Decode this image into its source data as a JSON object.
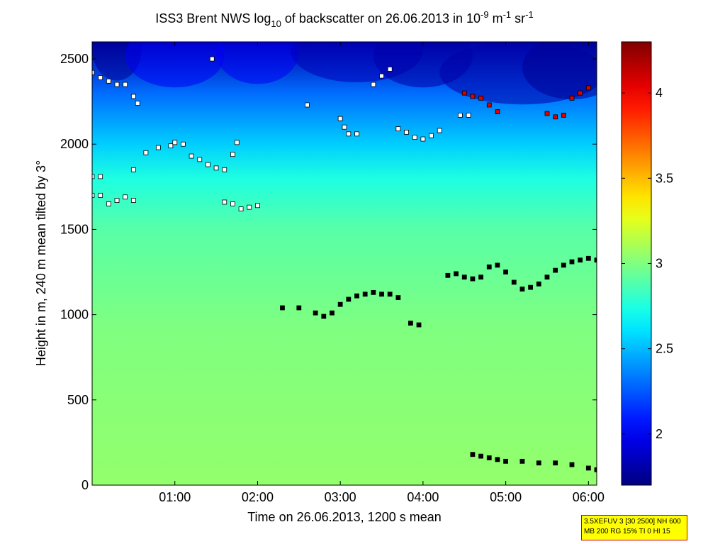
{
  "chart_data": {
    "type": "heatmap",
    "title_parts": [
      "ISS3 Brent NWS log",
      "10",
      " of backscatter on 26.06.2013 in 10",
      "-9",
      " m",
      "-1",
      " sr",
      "-1"
    ],
    "xlabel": "Time on 26.06.2013, 1200 s mean",
    "ylabel": "Height in m, 240 m mean tilted by 3°",
    "x_ticks": [
      "01:00",
      "02:00",
      "03:00",
      "04:00",
      "05:00",
      "06:00"
    ],
    "x_tick_hours": [
      1,
      2,
      3,
      4,
      5,
      6
    ],
    "xlim_hours": [
      0.0,
      6.1
    ],
    "y_ticks": [
      "0",
      "500",
      "1000",
      "1500",
      "2000",
      "2500"
    ],
    "y_tick_values": [
      0,
      500,
      1000,
      1500,
      2000,
      2500
    ],
    "ylim": [
      0,
      2600
    ],
    "colorbar": {
      "ticks": [
        "2",
        "2.5",
        "3",
        "3.5",
        "4"
      ],
      "tick_values": [
        2,
        2.5,
        3,
        3.5,
        4
      ],
      "clim": [
        1.7,
        4.3
      ],
      "colormap": "jet"
    },
    "field_description_levels": [
      {
        "height": 0,
        "value": 3.05
      },
      {
        "height": 900,
        "value": 3.0
      },
      {
        "height": 1500,
        "value": 2.9
      },
      {
        "height": 1800,
        "value": 2.75
      },
      {
        "height": 2000,
        "value": 2.55
      },
      {
        "height": 2300,
        "value": 2.3
      },
      {
        "height": 2600,
        "value": 1.8
      }
    ],
    "markers": [
      {
        "name": "layer_a",
        "color": "#ffffff",
        "points": [
          [
            0.0,
            2420
          ],
          [
            0.1,
            2390
          ],
          [
            0.2,
            2370
          ],
          [
            0.3,
            2350
          ],
          [
            0.4,
            2350
          ]
        ]
      },
      {
        "name": "layer_b",
        "color": "#ffffff",
        "points": [
          [
            0.5,
            2280
          ],
          [
            0.55,
            2240
          ],
          [
            1.45,
            2500
          ],
          [
            1.75,
            2010
          ],
          [
            2.6,
            2230
          ],
          [
            4.45,
            2170
          ],
          [
            4.55,
            2170
          ]
        ]
      },
      {
        "name": "layer_c",
        "color": "#ffffff",
        "points": [
          [
            0.5,
            1850
          ],
          [
            0.65,
            1950
          ],
          [
            0.8,
            1980
          ],
          [
            0.95,
            1990
          ],
          [
            1.0,
            2010
          ],
          [
            1.1,
            2000
          ],
          [
            1.2,
            1930
          ],
          [
            1.3,
            1910
          ],
          [
            1.4,
            1880
          ],
          [
            1.5,
            1860
          ],
          [
            1.6,
            1850
          ],
          [
            1.7,
            1940
          ]
        ]
      },
      {
        "name": "layer_d",
        "color": "#ffffff",
        "points": [
          [
            0.0,
            1810
          ],
          [
            0.1,
            1810
          ],
          [
            0.0,
            1700
          ],
          [
            0.1,
            1700
          ],
          [
            0.2,
            1650
          ],
          [
            0.3,
            1670
          ],
          [
            0.4,
            1690
          ],
          [
            0.5,
            1670
          ]
        ]
      },
      {
        "name": "layer_e",
        "color": "#ffffff",
        "points": [
          [
            1.6,
            1660
          ],
          [
            1.7,
            1650
          ],
          [
            1.8,
            1620
          ],
          [
            1.9,
            1630
          ],
          [
            2.0,
            1640
          ]
        ]
      },
      {
        "name": "layer_f",
        "color": "#ffffff",
        "points": [
          [
            3.0,
            2150
          ],
          [
            3.05,
            2100
          ],
          [
            3.1,
            2060
          ],
          [
            3.2,
            2060
          ],
          [
            3.4,
            2350
          ],
          [
            3.5,
            2400
          ],
          [
            3.6,
            2440
          ],
          [
            3.7,
            2090
          ],
          [
            3.8,
            2070
          ],
          [
            3.9,
            2040
          ],
          [
            4.0,
            2030
          ],
          [
            4.1,
            2050
          ],
          [
            4.2,
            2080
          ]
        ]
      },
      {
        "name": "layer_g",
        "color": "#000000",
        "points": [
          [
            2.3,
            1040
          ],
          [
            2.5,
            1040
          ],
          [
            2.7,
            1010
          ],
          [
            2.8,
            990
          ],
          [
            2.9,
            1010
          ],
          [
            3.0,
            1060
          ],
          [
            3.1,
            1090
          ],
          [
            3.2,
            1110
          ],
          [
            3.3,
            1120
          ],
          [
            3.4,
            1130
          ],
          [
            3.5,
            1120
          ],
          [
            3.6,
            1120
          ],
          [
            3.7,
            1100
          ]
        ]
      },
      {
        "name": "layer_h",
        "color": "#000000",
        "points": [
          [
            3.85,
            950
          ],
          [
            3.95,
            940
          ]
        ]
      },
      {
        "name": "layer_i",
        "color": "#000000",
        "points": [
          [
            4.3,
            1230
          ],
          [
            4.4,
            1240
          ],
          [
            4.5,
            1220
          ],
          [
            4.6,
            1210
          ],
          [
            4.7,
            1220
          ],
          [
            4.8,
            1280
          ],
          [
            4.9,
            1290
          ],
          [
            5.0,
            1250
          ],
          [
            5.1,
            1190
          ],
          [
            5.2,
            1150
          ],
          [
            5.3,
            1160
          ],
          [
            5.4,
            1180
          ],
          [
            5.5,
            1220
          ],
          [
            5.6,
            1260
          ],
          [
            5.7,
            1290
          ],
          [
            5.8,
            1310
          ],
          [
            5.9,
            1320
          ],
          [
            6.0,
            1330
          ],
          [
            6.1,
            1320
          ]
        ]
      },
      {
        "name": "layer_j",
        "color": "#000000",
        "points": [
          [
            4.6,
            180
          ],
          [
            4.7,
            170
          ],
          [
            4.8,
            160
          ],
          [
            4.9,
            150
          ],
          [
            5.0,
            140
          ],
          [
            5.2,
            140
          ],
          [
            5.4,
            130
          ],
          [
            5.6,
            130
          ],
          [
            5.8,
            120
          ],
          [
            6.0,
            100
          ],
          [
            6.1,
            90
          ]
        ]
      },
      {
        "name": "layer_k",
        "color": "#dd0000",
        "points": [
          [
            4.5,
            2300
          ],
          [
            4.6,
            2280
          ],
          [
            4.7,
            2270
          ],
          [
            4.8,
            2230
          ],
          [
            4.9,
            2190
          ],
          [
            5.5,
            2180
          ],
          [
            5.6,
            2160
          ],
          [
            5.7,
            2170
          ],
          [
            5.8,
            2270
          ],
          [
            5.9,
            2300
          ],
          [
            6.0,
            2330
          ]
        ]
      }
    ]
  },
  "info_box": {
    "line1": "3.5XEFUV 3 [30 2500] NH 600",
    "line2": "MB 200 RG 15% TI 0 HI 15"
  }
}
